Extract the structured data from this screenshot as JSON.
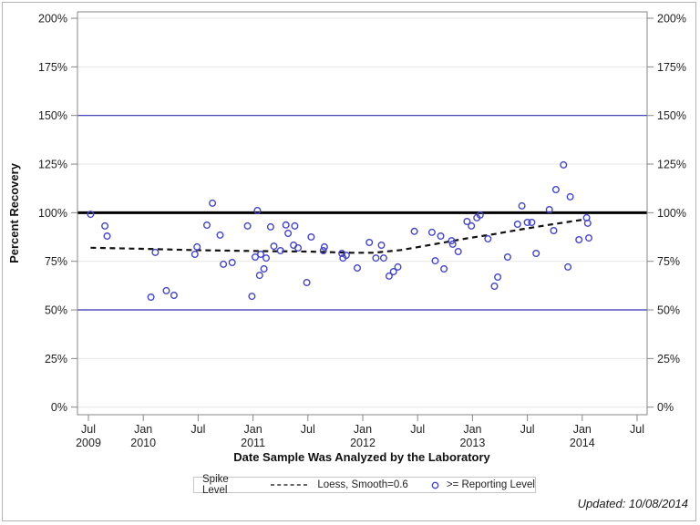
{
  "chart_data": {
    "type": "scatter",
    "title": "",
    "xlabel": "Date Sample Was Analyzed by the Laboratory",
    "ylabel": "Percent Recovery",
    "xlim": [
      2009.4,
      2014.59
    ],
    "ylim": [
      -4,
      203
    ],
    "grid": true,
    "grid_color": "#e7e7e7",
    "axis_color": "#878787",
    "marker_color": "#4545c4",
    "loess_color": "#111111",
    "refline_blue": "#3333b3",
    "refline_black": "#000000",
    "y_ticks": [
      {
        "value": 0,
        "label": "0%"
      },
      {
        "value": 25,
        "label": "25%"
      },
      {
        "value": 50,
        "label": "50%"
      },
      {
        "value": 75,
        "label": "75%"
      },
      {
        "value": 100,
        "label": "100%"
      },
      {
        "value": 125,
        "label": "125%"
      },
      {
        "value": 150,
        "label": "150%"
      },
      {
        "value": 175,
        "label": "175%"
      },
      {
        "value": 200,
        "label": "200%"
      }
    ],
    "x_ticks": [
      {
        "value": 2009.5,
        "line1": "Jul",
        "line2": "2009"
      },
      {
        "value": 2010.0,
        "line1": "Jan",
        "line2": "2010"
      },
      {
        "value": 2010.5,
        "line1": "Jul",
        "line2": ""
      },
      {
        "value": 2011.0,
        "line1": "Jan",
        "line2": "2011"
      },
      {
        "value": 2011.5,
        "line1": "Jul",
        "line2": ""
      },
      {
        "value": 2012.0,
        "line1": "Jan",
        "line2": "2012"
      },
      {
        "value": 2012.5,
        "line1": "Jul",
        "line2": ""
      },
      {
        "value": 2013.0,
        "line1": "Jan",
        "line2": "2013"
      },
      {
        "value": 2013.5,
        "line1": "Jul",
        "line2": ""
      },
      {
        "value": 2014.0,
        "line1": "Jan",
        "line2": "2014"
      },
      {
        "value": 2014.5,
        "line1": "Jul",
        "line2": ""
      }
    ],
    "reference_lines": [
      {
        "value": 150,
        "color": "#3333b3",
        "width": 1.2,
        "name": "spike-level-upper"
      },
      {
        "value": 100,
        "color": "#000000",
        "width": 3,
        "name": "spike-level-100"
      },
      {
        "value": 50,
        "color": "#3333b3",
        "width": 1.2,
        "name": "spike-level-lower"
      }
    ],
    "points": [
      [
        2009.52,
        99.2
      ],
      [
        2009.65,
        93.2
      ],
      [
        2009.67,
        88.0
      ],
      [
        2010.07,
        56.6
      ],
      [
        2010.11,
        79.6
      ],
      [
        2010.21,
        59.9
      ],
      [
        2010.28,
        57.5
      ],
      [
        2010.47,
        78.6
      ],
      [
        2010.49,
        82.4
      ],
      [
        2010.58,
        93.6
      ],
      [
        2010.63,
        104.9
      ],
      [
        2010.7,
        88.5
      ],
      [
        2010.73,
        73.5
      ],
      [
        2010.81,
        74.4
      ],
      [
        2010.95,
        93.2
      ],
      [
        2010.99,
        57.0
      ],
      [
        2011.02,
        77.2
      ],
      [
        2011.04,
        101.1
      ],
      [
        2011.06,
        67.8
      ],
      [
        2011.07,
        78.6
      ],
      [
        2011.1,
        71.1
      ],
      [
        2011.12,
        76.7
      ],
      [
        2011.16,
        92.7
      ],
      [
        2011.19,
        82.8
      ],
      [
        2011.25,
        80.5
      ],
      [
        2011.3,
        93.7
      ],
      [
        2011.32,
        89.4
      ],
      [
        2011.37,
        83.3
      ],
      [
        2011.38,
        93.2
      ],
      [
        2011.41,
        81.9
      ],
      [
        2011.49,
        64.1
      ],
      [
        2011.53,
        87.5
      ],
      [
        2011.64,
        80.5
      ],
      [
        2011.65,
        82.4
      ],
      [
        2011.81,
        79.1
      ],
      [
        2011.82,
        76.7
      ],
      [
        2011.85,
        78.1
      ],
      [
        2011.95,
        71.6
      ],
      [
        2012.06,
        84.7
      ],
      [
        2012.12,
        76.7
      ],
      [
        2012.17,
        83.3
      ],
      [
        2012.19,
        76.7
      ],
      [
        2012.24,
        67.4
      ],
      [
        2012.28,
        69.7
      ],
      [
        2012.32,
        72.1
      ],
      [
        2012.47,
        90.4
      ],
      [
        2012.63,
        89.9
      ],
      [
        2012.66,
        75.3
      ],
      [
        2012.71,
        88.0
      ],
      [
        2012.74,
        71.1
      ],
      [
        2012.81,
        85.6
      ],
      [
        2012.82,
        83.8
      ],
      [
        2012.87,
        80.0
      ],
      [
        2012.95,
        95.5
      ],
      [
        2012.99,
        93.2
      ],
      [
        2013.04,
        97.4
      ],
      [
        2013.07,
        98.8
      ],
      [
        2013.14,
        86.6
      ],
      [
        2013.2,
        62.2
      ],
      [
        2013.23,
        66.9
      ],
      [
        2013.32,
        77.2
      ],
      [
        2013.41,
        94.1
      ],
      [
        2013.45,
        103.5
      ],
      [
        2013.5,
        95.0
      ],
      [
        2013.54,
        95.0
      ],
      [
        2013.58,
        79.1
      ],
      [
        2013.7,
        101.6
      ],
      [
        2013.74,
        90.8
      ],
      [
        2013.76,
        111.9
      ],
      [
        2013.83,
        124.6
      ],
      [
        2013.87,
        72.1
      ],
      [
        2013.89,
        108.2
      ],
      [
        2013.97,
        86.1
      ],
      [
        2014.04,
        97.4
      ],
      [
        2014.05,
        94.6
      ],
      [
        2014.06,
        87.0
      ]
    ],
    "loess": [
      [
        2009.52,
        82.0
      ],
      [
        2010.0,
        81.4
      ],
      [
        2010.5,
        80.7
      ],
      [
        2011.0,
        80.3
      ],
      [
        2011.5,
        80.0
      ],
      [
        2011.9,
        79.4
      ],
      [
        2012.1,
        79.4
      ],
      [
        2012.35,
        80.8
      ],
      [
        2012.55,
        82.8
      ],
      [
        2012.75,
        84.8
      ],
      [
        2012.95,
        86.8
      ],
      [
        2013.2,
        89.0
      ],
      [
        2013.45,
        91.5
      ],
      [
        2013.7,
        93.8
      ],
      [
        2014.03,
        96.6
      ]
    ],
    "legend": {
      "title": "Spike Level",
      "items": [
        {
          "marker": "dashed-line",
          "label": "Loess, Smooth=0.6"
        },
        {
          "marker": "open-circle",
          "label": ">= Reporting Level"
        }
      ]
    }
  },
  "footer": {
    "updated_label": "Updated: 10/08/2014"
  }
}
